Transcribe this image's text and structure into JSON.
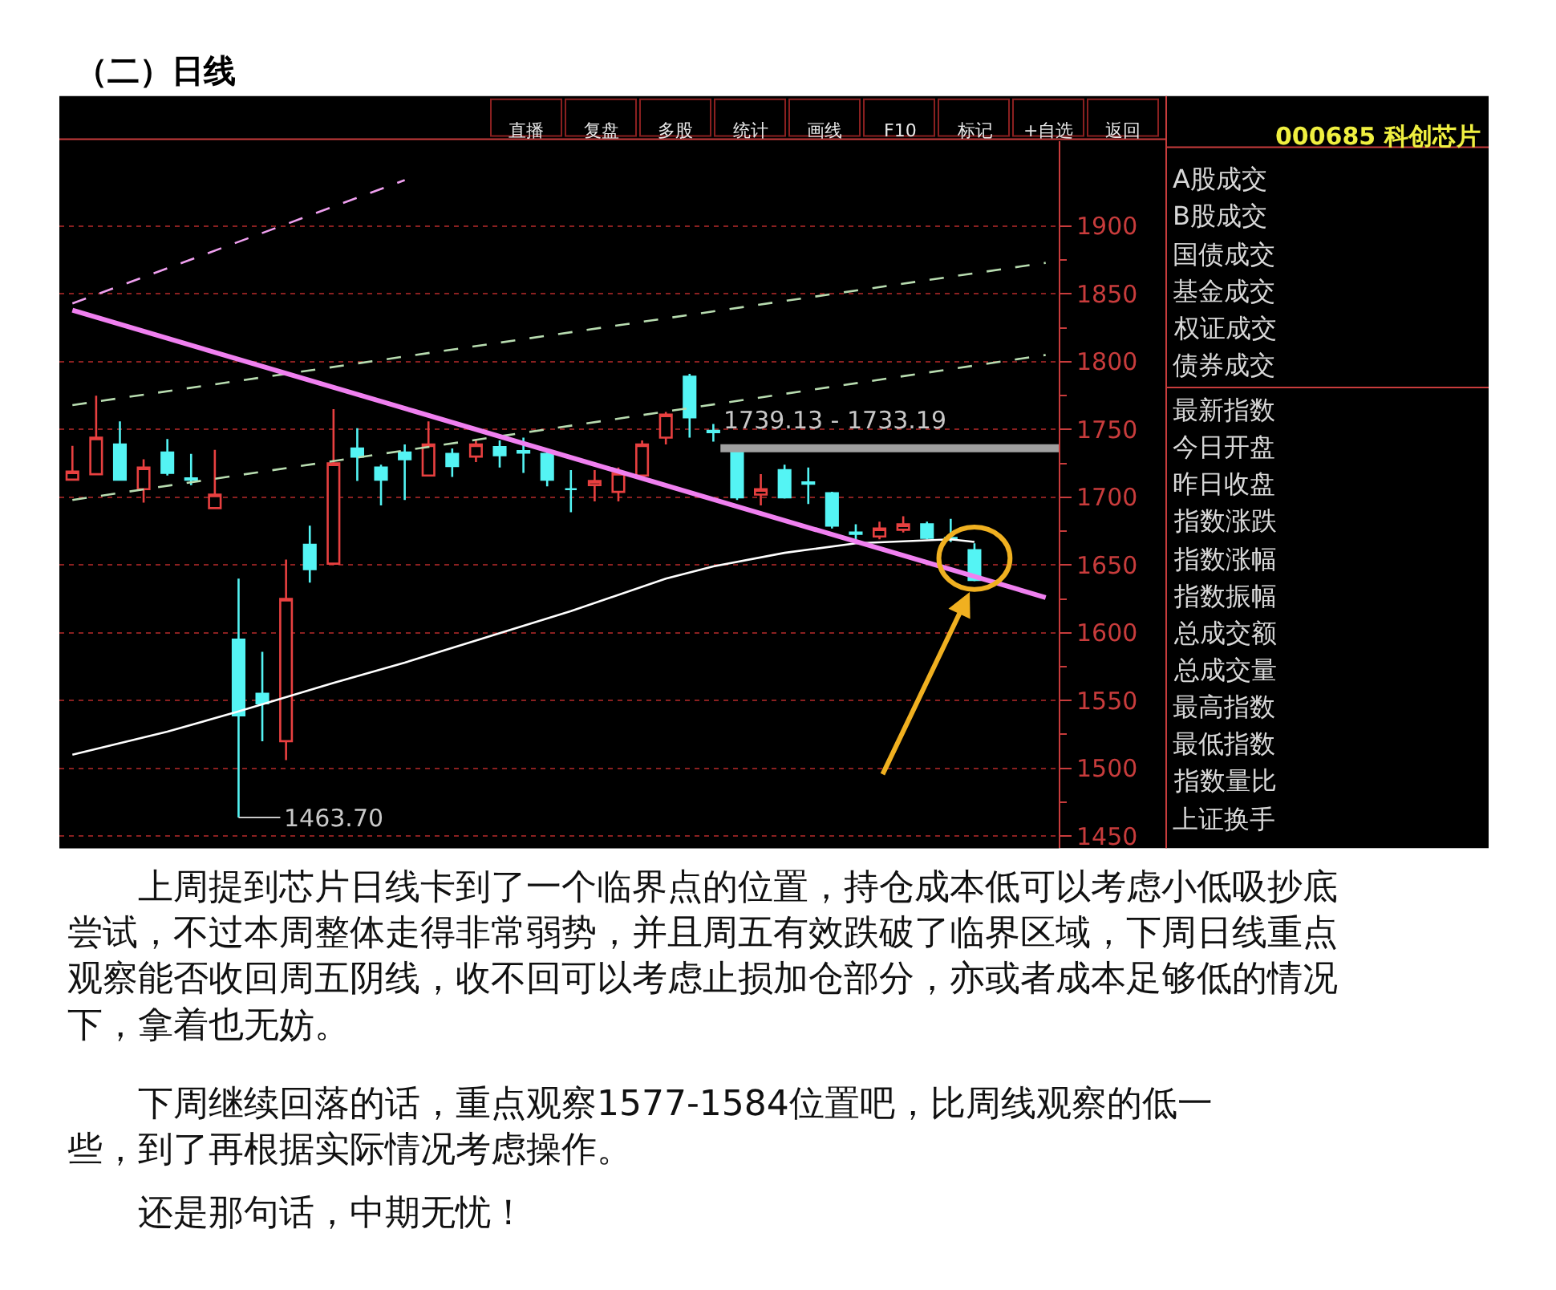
{
  "chart_data": [
    {
      "type": "candlestick",
      "title": "（二）日线",
      "categories": [
        null,
        null,
        null,
        null,
        null,
        null,
        null,
        null,
        null,
        null,
        null,
        null,
        null,
        null,
        null,
        null,
        null,
        null,
        null,
        null,
        null,
        null,
        null,
        null,
        null,
        null,
        null,
        null,
        null,
        null,
        null,
        null,
        null,
        null,
        null,
        null,
        null,
        null,
        null,
        null,
        null,
        null
      ],
      "ohlc": [
        [
          1713,
          1738,
          1713,
          1719
        ],
        [
          1717,
          1775,
          1717,
          1744
        ],
        [
          1739,
          1756,
          1713,
          1713
        ],
        [
          1706,
          1728,
          1696,
          1722
        ],
        [
          1733,
          1743,
          1716,
          1718
        ],
        [
          1714,
          1732,
          1709,
          1713
        ],
        [
          1692,
          1735,
          1692,
          1702
        ],
        [
          1595,
          1640,
          1463.7,
          1539
        ],
        [
          1555,
          1586,
          1520,
          1548
        ],
        [
          1520,
          1654,
          1506,
          1625
        ],
        [
          1665,
          1679,
          1637,
          1647
        ],
        [
          1651,
          1765,
          1650,
          1725
        ],
        [
          1736,
          1751,
          1712,
          1730
        ],
        [
          1722,
          1724,
          1694,
          1713
        ],
        [
          1733,
          1739,
          1698,
          1728
        ],
        [
          1716,
          1756,
          1716,
          1739
        ],
        [
          1732,
          1736,
          1715,
          1723
        ],
        [
          1730,
          1742,
          1726,
          1739
        ],
        [
          1737,
          1742,
          1722,
          1731
        ],
        [
          1734,
          1744,
          1718,
          1733
        ],
        [
          1732,
          1736,
          1708,
          1713
        ],
        [
          1706,
          1720,
          1689,
          1706
        ],
        [
          1709,
          1720,
          1697,
          1712
        ],
        [
          1704,
          1722,
          1697,
          1718
        ],
        [
          1716,
          1742,
          1716,
          1739
        ],
        [
          1744,
          1763,
          1739,
          1761
        ],
        [
          1789,
          1791,
          1744,
          1759
        ],
        [
          1749,
          1754,
          1741,
          1748
        ],
        [
          1733,
          1736,
          1698,
          1700
        ],
        [
          1702,
          1717,
          1694,
          1706
        ],
        [
          1720,
          1724,
          1699,
          1700
        ],
        [
          1711,
          1722,
          1695,
          1710
        ],
        [
          1703,
          1704,
          1677,
          1679
        ],
        [
          1674,
          1680,
          1669,
          1673
        ],
        [
          1671,
          1682,
          1669,
          1677
        ],
        [
          1676,
          1686,
          1674,
          1680
        ],
        [
          1680,
          1682,
          1669,
          1670
        ],
        [
          1670,
          1684,
          1667,
          1669
        ],
        [
          1661,
          1666,
          1638,
          1639
        ],
        null,
        null,
        null
      ],
      "colors": [
        "#e84040",
        "#e84040",
        "#54f4f4",
        "#e84040",
        "#54f4f4",
        "#54f4f4",
        "#e84040",
        "#54f4f4",
        "#54f4f4",
        "#e84040",
        "#54f4f4",
        "#e84040",
        "#54f4f4",
        "#54f4f4",
        "#54f4f4",
        "#e84040",
        "#54f4f4",
        "#e84040",
        "#54f4f4",
        "#54f4f4",
        "#54f4f4",
        "#54f4f4",
        "#e84040",
        "#e84040",
        "#e84040",
        "#e84040",
        "#54f4f4",
        "#54f4f4",
        "#54f4f4",
        "#e84040",
        "#54f4f4",
        "#54f4f4",
        "#54f4f4",
        "#54f4f4",
        "#e84040",
        "#e84040",
        "#54f4f4",
        "#54f4f4",
        "#54f4f4",
        null,
        null,
        null
      ],
      "series": [
        {
          "type": "line",
          "color": "#ffffff",
          "line_style": "solid",
          "values": [
            1510,
            null,
            null,
            null,
            1527,
            null,
            null,
            1542,
            null,
            null,
            null,
            1563,
            null,
            null,
            1578,
            null,
            null,
            null,
            null,
            null,
            null,
            1616,
            null,
            null,
            null,
            1640,
            null,
            1649,
            null,
            null,
            1659,
            null,
            null,
            1666,
            null,
            null,
            null,
            1669,
            1667,
            null,
            null,
            null
          ]
        },
        {
          "type": "line",
          "color": "#b8dcb0",
          "line_style": "dashed",
          "values": [
            1768,
            null,
            null,
            null,
            null,
            null,
            null,
            null,
            null,
            null,
            null,
            null,
            null,
            null,
            null,
            null,
            null,
            null,
            null,
            null,
            null,
            null,
            null,
            null,
            null,
            null,
            null,
            null,
            null,
            null,
            null,
            null,
            null,
            null,
            null,
            null,
            null,
            null,
            null,
            null,
            null,
            1873
          ]
        },
        {
          "type": "line",
          "color": "#b8dcb0",
          "line_style": "dashed",
          "values": [
            1698,
            null,
            null,
            null,
            null,
            null,
            null,
            null,
            null,
            null,
            null,
            null,
            null,
            null,
            null,
            null,
            null,
            null,
            null,
            null,
            null,
            null,
            null,
            null,
            null,
            null,
            null,
            null,
            null,
            null,
            null,
            null,
            null,
            null,
            null,
            null,
            null,
            null,
            null,
            null,
            null,
            1805
          ]
        },
        {
          "type": "line",
          "color": "#f0a0f0",
          "line_style": "dashed",
          "values": [
            1843,
            null,
            null,
            null,
            null,
            null,
            null,
            null,
            null,
            null,
            null,
            null,
            null,
            null,
            1934,
            null,
            null,
            null,
            null,
            null,
            null,
            null,
            null,
            null,
            null,
            null,
            null,
            null,
            null,
            null,
            null,
            null,
            null,
            null,
            null,
            null,
            null,
            null,
            null,
            null,
            null,
            null
          ]
        },
        {
          "type": "line",
          "color": "#f080f0",
          "line_style": "solid",
          "values": [
            1838,
            null,
            null,
            null,
            null,
            null,
            null,
            null,
            null,
            null,
            null,
            null,
            null,
            null,
            null,
            null,
            null,
            null,
            null,
            null,
            null,
            null,
            null,
            null,
            null,
            null,
            null,
            null,
            null,
            null,
            null,
            null,
            null,
            null,
            null,
            null,
            null,
            null,
            null,
            null,
            null,
            1626
          ]
        }
      ],
      "bands": [
        {
          "axis": "y",
          "from": 1733.19,
          "to": 1739.13,
          "label": "1739.13 - 1733.19",
          "color": "#a0a0a0"
        }
      ],
      "annotations": [
        "1463.70"
      ],
      "ylim": [
        1441,
        1963
      ],
      "yticks": [
        1450,
        1500,
        1550,
        1600,
        1650,
        1700,
        1750,
        1800,
        1850,
        1900
      ],
      "grid": "y",
      "tick_labels": "y"
    },
    {
      "type": "other",
      "annotations": [
        "直播",
        "复盘",
        "多股",
        "统计",
        "画线",
        "F10",
        "标记",
        "+自选",
        "返回"
      ]
    },
    {
      "type": "other",
      "title": "000685 科创芯片",
      "annotations": [
        "A股成交",
        "B股成交",
        "国债成交",
        "基金成交",
        "权证成交",
        "债券成交",
        "最新指数",
        "今日开盘",
        "昨日收盘",
        "指数涨跌",
        "指数涨幅",
        "指数振幅",
        "总成交额",
        "总成交量",
        "最高指数",
        "最低指数",
        "指数量比",
        "上证换手"
      ]
    },
    {
      "type": "other",
      "annotations": [
        "上周提到芯片日线卡到了一个临界点的位置，持仓成本低可以考虑小低吸抄底尝试，不过本周整体走得非常弱势，并且周五有效跌破了临界区域，下周日线重点观察能否收回周五阴线，收不回可以考虑止损加仓部分，亦或者成本足够低的情况下，拿着也无妨。",
        "下周继续回落的话，重点观察1577-1584位置吧，比周线观察的低一些，到了再根据实际情况考虑操作。",
        "还是那句话，中期无忧！"
      ]
    }
  ]
}
